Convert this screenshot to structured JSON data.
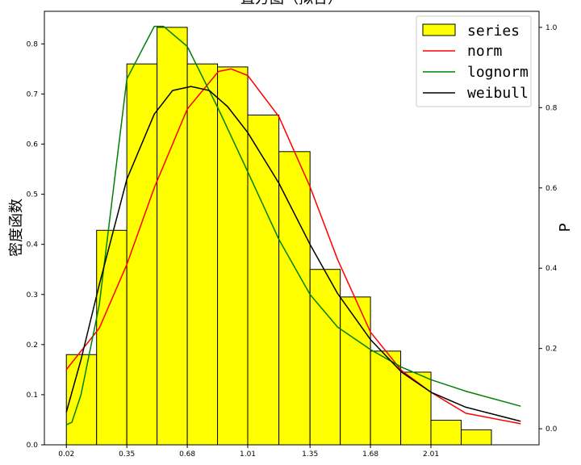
{
  "chart_data": {
    "type": "bar",
    "title": "直方图（拟合）",
    "ylabel": "密度函数",
    "y2label": "P",
    "ylim": [
      0,
      0.865
    ],
    "y2lim": [
      -0.04,
      1.04
    ],
    "xlim": [
      -0.1,
      2.6
    ],
    "grid": false,
    "legend_placement": "top-right",
    "x_ticks": [
      0.02,
      0.35,
      0.68,
      1.01,
      1.35,
      1.68,
      2.01
    ],
    "x_tick_labels": [
      "0.02",
      "0.35",
      "0.68",
      "1.01",
      "1.35",
      "1.68",
      "2.01"
    ],
    "y_ticks": [
      0.0,
      0.1,
      0.2,
      0.3,
      0.4,
      0.5,
      0.6,
      0.7,
      0.8
    ],
    "y_tick_labels": [
      "0.0",
      "0.1",
      "0.2",
      "0.3",
      "0.4",
      "0.5",
      "0.6",
      "0.7",
      "0.8"
    ],
    "y2_ticks": [
      0.0,
      0.2,
      0.4,
      0.6,
      0.8,
      1.0
    ],
    "y2_tick_labels": [
      "0.0",
      "0.2",
      "0.4",
      "0.6",
      "0.8",
      "1.0"
    ],
    "bins": [
      {
        "x0": 0.02,
        "x1": 0.185,
        "value": 0.18
      },
      {
        "x0": 0.185,
        "x1": 0.35,
        "value": 0.428
      },
      {
        "x0": 0.35,
        "x1": 0.515,
        "value": 0.76
      },
      {
        "x0": 0.515,
        "x1": 0.68,
        "value": 0.833
      },
      {
        "x0": 0.68,
        "x1": 0.845,
        "value": 0.76
      },
      {
        "x0": 0.845,
        "x1": 1.01,
        "value": 0.754
      },
      {
        "x0": 1.01,
        "x1": 1.18,
        "value": 0.658
      },
      {
        "x0": 1.18,
        "x1": 1.35,
        "value": 0.585
      },
      {
        "x0": 1.35,
        "x1": 1.515,
        "value": 0.35
      },
      {
        "x0": 1.515,
        "x1": 1.68,
        "value": 0.295
      },
      {
        "x0": 1.68,
        "x1": 1.845,
        "value": 0.187
      },
      {
        "x0": 1.845,
        "x1": 2.01,
        "value": 0.145
      },
      {
        "x0": 2.01,
        "x1": 2.175,
        "value": 0.049
      },
      {
        "x0": 2.175,
        "x1": 2.34,
        "value": 0.03
      }
    ],
    "bar_color": "#ffff00",
    "bar_edge_color": "#000000",
    "series": [
      {
        "name": "series",
        "kind": "bar",
        "color": "#ffff00"
      },
      {
        "name": "norm",
        "kind": "line",
        "color": "#ff0000",
        "x": [
          0.02,
          0.2,
          0.35,
          0.5,
          0.68,
          0.85,
          0.92,
          1.01,
          1.18,
          1.35,
          1.5,
          1.68,
          1.85,
          2.01,
          2.2,
          2.5
        ],
        "values": [
          0.15,
          0.233,
          0.36,
          0.513,
          0.67,
          0.745,
          0.75,
          0.737,
          0.655,
          0.515,
          0.37,
          0.225,
          0.148,
          0.105,
          0.063,
          0.042
        ]
      },
      {
        "name": "lognorm",
        "kind": "line",
        "color": "#008000",
        "x": [
          0.02,
          0.05,
          0.1,
          0.2,
          0.35,
          0.5,
          0.55,
          0.68,
          0.85,
          1.01,
          1.18,
          1.35,
          1.5,
          1.68,
          1.85,
          2.01,
          2.2,
          2.5
        ],
        "values": [
          0.04,
          0.045,
          0.1,
          0.28,
          0.73,
          0.835,
          0.835,
          0.795,
          0.67,
          0.545,
          0.41,
          0.3,
          0.235,
          0.19,
          0.155,
          0.13,
          0.107,
          0.077
        ]
      },
      {
        "name": "weibull",
        "kind": "line",
        "color": "#000000",
        "x": [
          0.02,
          0.1,
          0.2,
          0.35,
          0.5,
          0.6,
          0.7,
          0.8,
          0.9,
          1.01,
          1.18,
          1.35,
          1.5,
          1.68,
          1.85,
          2.01,
          2.2,
          2.5
        ],
        "values": [
          0.065,
          0.17,
          0.32,
          0.53,
          0.66,
          0.707,
          0.715,
          0.707,
          0.675,
          0.623,
          0.522,
          0.4,
          0.302,
          0.21,
          0.145,
          0.105,
          0.075,
          0.047
        ]
      }
    ]
  },
  "legend": {
    "items": [
      "series",
      "norm",
      "lognorm",
      "weibull"
    ]
  }
}
